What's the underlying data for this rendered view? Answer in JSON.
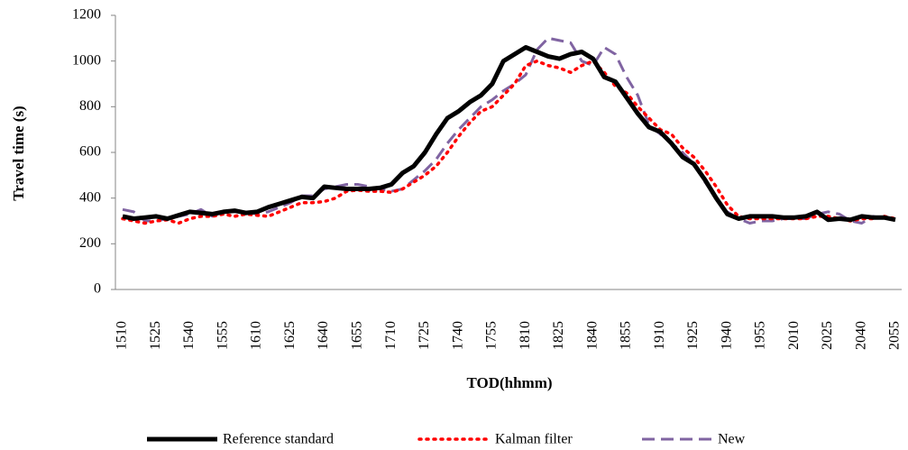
{
  "chart_data": {
    "type": "line",
    "x_label": "TOD(hhmm)",
    "y_label": "Travel time (s)",
    "categories": [
      "1510",
      null,
      null,
      "1525",
      null,
      null,
      "1540",
      null,
      null,
      "1555",
      null,
      null,
      "1610",
      null,
      null,
      "1625",
      null,
      null,
      "1640",
      null,
      null,
      "1655",
      null,
      null,
      "1710",
      null,
      null,
      "1725",
      null,
      null,
      "1740",
      null,
      null,
      "1755",
      null,
      null,
      "1810",
      null,
      null,
      "1825",
      null,
      null,
      "1840",
      null,
      null,
      "1855",
      null,
      null,
      "1910",
      null,
      null,
      "1925",
      null,
      null,
      "1940",
      null,
      null,
      "1955",
      null,
      null,
      "2010",
      null,
      null,
      "2025",
      null,
      null,
      "2040",
      null,
      null,
      "2055"
    ],
    "ylim": [
      0,
      1200
    ],
    "yticks": [
      0,
      200,
      400,
      600,
      800,
      1000,
      1200
    ],
    "grid": false,
    "legend": "bottom",
    "series": [
      {
        "name": "Reference standard",
        "color": "#000000",
        "style": "solid",
        "values": [
          320,
          310,
          315,
          320,
          310,
          325,
          340,
          335,
          330,
          340,
          345,
          335,
          340,
          360,
          375,
          390,
          405,
          400,
          450,
          445,
          440,
          440,
          440,
          445,
          460,
          510,
          540,
          600,
          680,
          750,
          780,
          820,
          850,
          900,
          1000,
          1030,
          1060,
          1040,
          1020,
          1010,
          1030,
          1040,
          1010,
          930,
          910,
          840,
          770,
          710,
          690,
          640,
          580,
          550,
          480,
          400,
          330,
          310,
          320,
          320,
          320,
          315,
          315,
          320,
          340,
          305,
          310,
          305,
          320,
          315,
          315,
          305
        ]
      },
      {
        "name": "Kalman filter",
        "color": "#ff0000",
        "style": "dotted",
        "values": [
          310,
          300,
          290,
          300,
          305,
          290,
          310,
          320,
          320,
          330,
          320,
          330,
          325,
          320,
          340,
          360,
          380,
          380,
          385,
          400,
          430,
          435,
          430,
          430,
          425,
          440,
          470,
          500,
          540,
          600,
          670,
          730,
          780,
          800,
          850,
          900,
          980,
          1000,
          980,
          970,
          950,
          980,
          1000,
          950,
          890,
          860,
          800,
          750,
          700,
          680,
          620,
          580,
          520,
          450,
          370,
          320,
          310,
          310,
          310,
          310,
          310,
          310,
          320,
          320,
          310,
          300,
          310,
          310,
          320,
          310
        ]
      },
      {
        "name": "New",
        "color": "#8064a2",
        "style": "dashed",
        "values": [
          350,
          340,
          300,
          300,
          310,
          320,
          330,
          350,
          320,
          340,
          340,
          340,
          330,
          340,
          360,
          380,
          410,
          410,
          440,
          450,
          460,
          460,
          450,
          440,
          430,
          440,
          480,
          520,
          570,
          640,
          700,
          750,
          800,
          830,
          870,
          900,
          940,
          1050,
          1100,
          1090,
          1080,
          1000,
          980,
          1060,
          1030,
          930,
          850,
          720,
          680,
          640,
          600,
          550,
          470,
          400,
          340,
          310,
          290,
          300,
          300,
          310,
          310,
          310,
          330,
          340,
          330,
          300,
          290,
          320,
          310,
          310
        ]
      }
    ]
  }
}
